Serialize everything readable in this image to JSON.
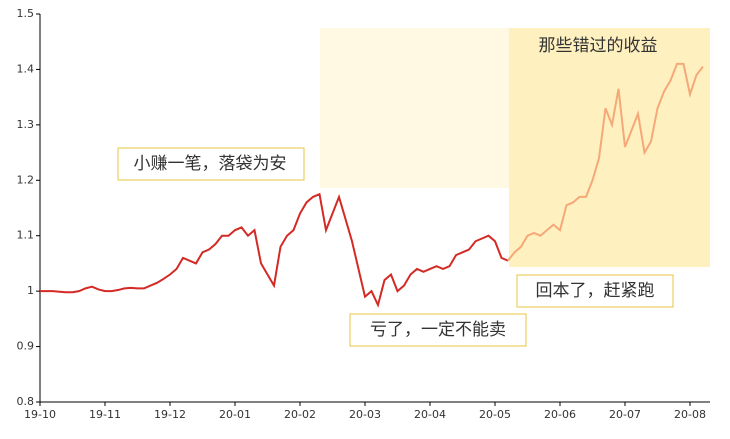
{
  "chart_data": {
    "type": "line",
    "categories": [
      "19-10",
      null,
      null,
      null,
      null,
      null,
      null,
      null,
      null,
      null,
      "19-11",
      null,
      null,
      null,
      null,
      null,
      null,
      null,
      null,
      null,
      "19-12",
      null,
      null,
      null,
      null,
      null,
      null,
      null,
      null,
      null,
      "20-01",
      null,
      null,
      null,
      null,
      null,
      null,
      null,
      null,
      null,
      "20-02",
      null,
      null,
      null,
      null,
      null,
      null,
      null,
      null,
      null,
      "20-03",
      null,
      null,
      null,
      null,
      null,
      null,
      null,
      null,
      null,
      "20-04",
      null,
      null,
      null,
      null,
      null,
      null,
      null,
      null,
      null,
      "20-05",
      null,
      null,
      null,
      null,
      null,
      null,
      null,
      null,
      null,
      "20-06",
      null,
      null,
      null,
      null,
      null,
      null,
      null,
      null,
      null,
      "20-07",
      null,
      null,
      null,
      null,
      null,
      null,
      null,
      null,
      null,
      "20-08",
      null,
      null
    ],
    "series": [
      {
        "color": "#d42a25",
        "values": [
          1.0,
          1.0,
          1.0,
          0.999,
          0.998,
          0.998,
          1.0,
          1.005,
          1.008,
          1.003,
          1.0,
          1.0,
          1.002,
          1.005,
          1.006,
          1.005,
          1.005,
          1.01,
          1.015,
          1.022,
          1.03,
          1.04,
          1.06,
          1.055,
          1.05,
          1.07,
          1.075,
          1.085,
          1.1,
          1.1,
          1.11,
          1.115,
          1.1,
          1.11,
          1.05,
          1.03,
          1.01,
          1.08,
          1.1,
          1.11,
          1.14,
          1.16,
          1.17,
          1.175,
          1.11,
          1.14,
          1.17,
          1.13,
          1.09,
          1.04,
          0.99,
          1.0,
          0.975,
          1.02,
          1.03,
          1.0,
          1.01,
          1.03,
          1.04,
          1.035,
          1.04,
          1.045,
          1.04,
          1.045,
          1.065,
          1.07,
          1.075,
          1.09,
          1.095,
          1.1,
          1.09,
          1.06,
          1.055,
          null,
          null,
          null,
          null,
          null,
          null,
          null,
          null,
          null,
          null,
          null,
          null,
          null,
          null,
          null,
          null,
          null,
          null,
          null,
          null,
          null,
          null,
          null,
          null,
          null,
          null,
          null,
          null,
          null,
          null
        ]
      },
      {
        "color": "#f5a878",
        "values": [
          null,
          null,
          null,
          null,
          null,
          null,
          null,
          null,
          null,
          null,
          null,
          null,
          null,
          null,
          null,
          null,
          null,
          null,
          null,
          null,
          null,
          null,
          null,
          null,
          null,
          null,
          null,
          null,
          null,
          null,
          null,
          null,
          null,
          null,
          null,
          null,
          null,
          null,
          null,
          null,
          null,
          null,
          null,
          null,
          null,
          null,
          null,
          null,
          null,
          null,
          null,
          null,
          null,
          null,
          null,
          null,
          null,
          null,
          null,
          null,
          null,
          null,
          null,
          null,
          null,
          null,
          null,
          null,
          null,
          null,
          null,
          null,
          1.055,
          1.07,
          1.08,
          1.1,
          1.105,
          1.1,
          1.11,
          1.12,
          1.11,
          1.155,
          1.16,
          1.17,
          1.17,
          1.2,
          1.24,
          1.33,
          1.3,
          1.365,
          1.26,
          1.29,
          1.32,
          1.25,
          1.27,
          1.33,
          1.36,
          1.38,
          1.41,
          1.41,
          1.355,
          1.39,
          1.405
        ]
      }
    ],
    "ylim": [
      0.8,
      1.5
    ],
    "yticks": [
      0.8,
      0.9,
      1,
      1.1,
      1.2,
      1.3,
      1.4,
      1.5
    ],
    "annotations": [
      "那些错过的收益",
      "小赚一笔，落袋为安",
      "亏了，一定不能卖",
      "回本了，赶紧跑"
    ]
  }
}
